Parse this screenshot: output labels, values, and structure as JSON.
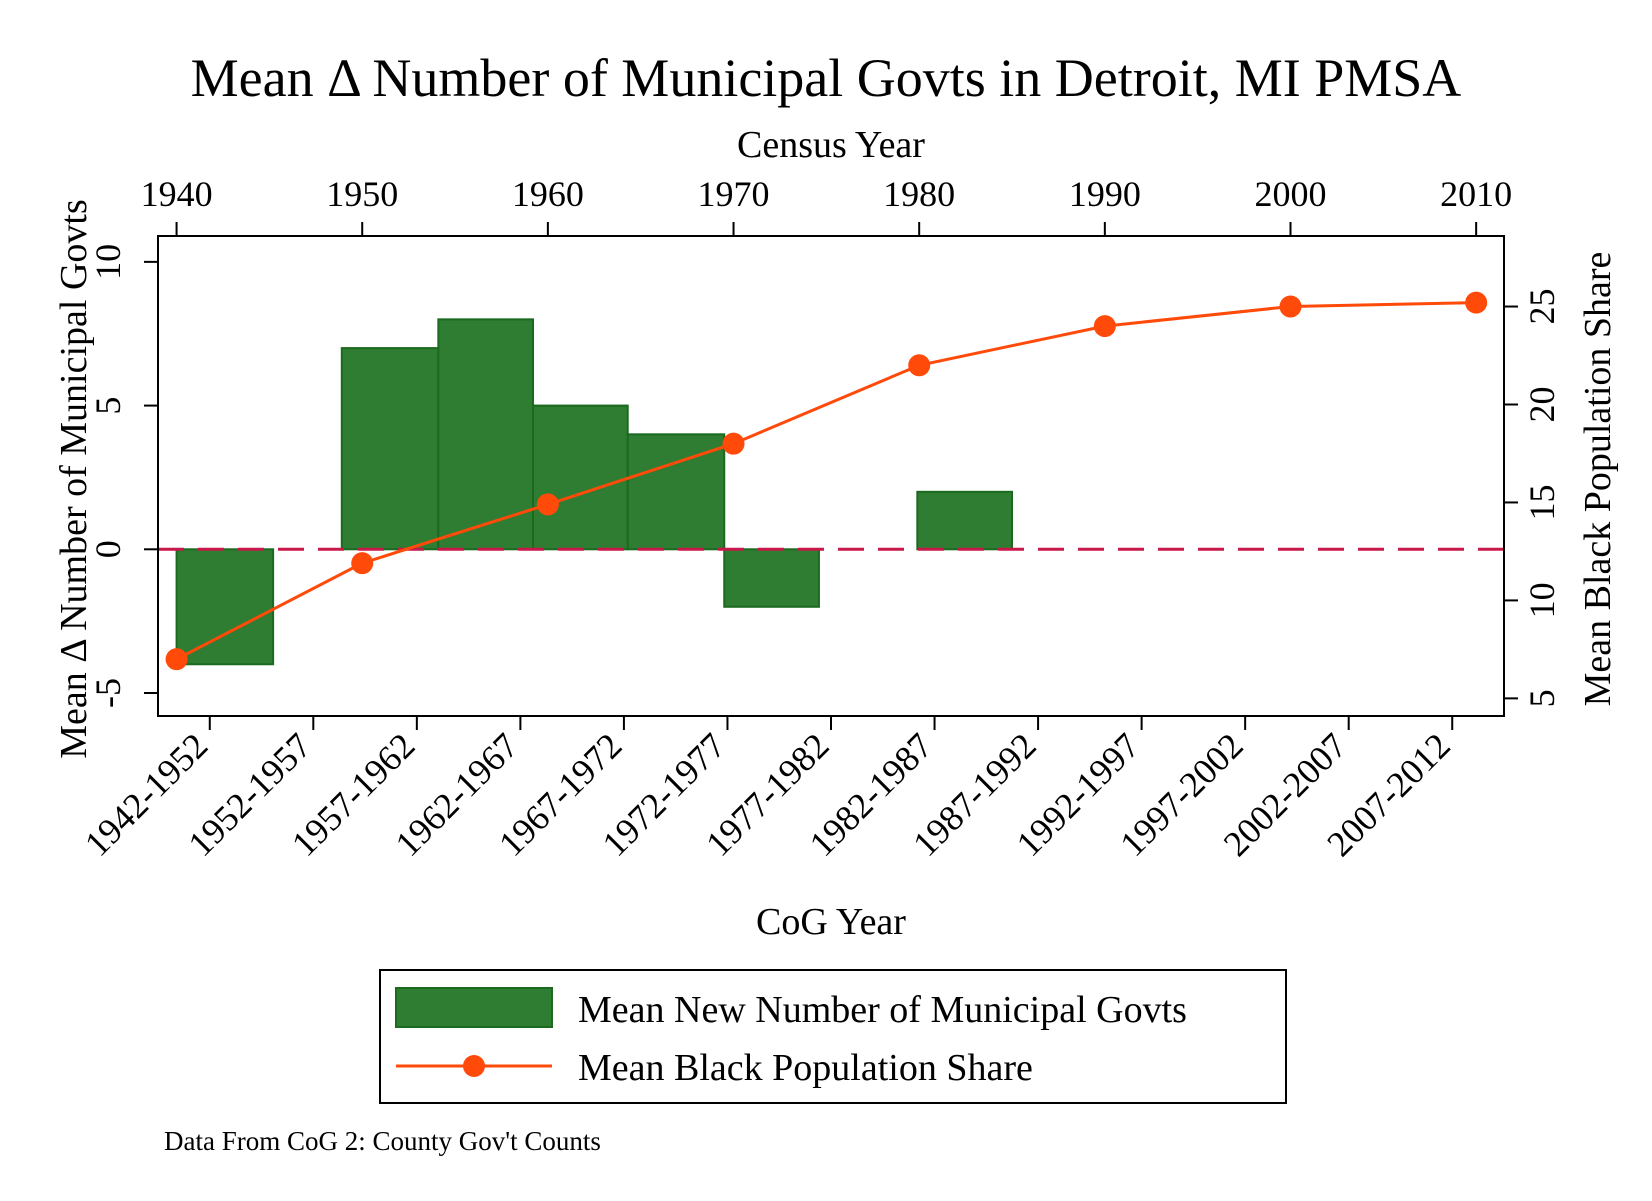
{
  "chart_data": {
    "type": "bar",
    "title": "Mean Δ Number of Municipal Govts in Detroit, MI PMSA",
    "note": "Data From CoG 2: County Gov't Counts",
    "x_bottom": {
      "label": "CoG Year",
      "categories": [
        "1942-1952",
        "1952-1957",
        "1957-1962",
        "1962-1967",
        "1967-1972",
        "1972-1977",
        "1977-1982",
        "1982-1987",
        "1987-1992",
        "1992-1997",
        "1997-2002",
        "2002-2007",
        "2007-2012"
      ]
    },
    "x_top": {
      "label": "Census Year",
      "ticks": [
        1940,
        1950,
        1960,
        1970,
        1980,
        1990,
        2000,
        2010
      ],
      "range": [
        1939,
        2011.5
      ]
    },
    "y_left": {
      "label": "Mean Δ Number of Municipal Govts",
      "ticks": [
        -5,
        0,
        5,
        10
      ],
      "range": [
        -5.8,
        10.9
      ]
    },
    "y_right": {
      "label": "Mean Black Population Share",
      "ticks": [
        5,
        10,
        15,
        20,
        25
      ],
      "range": [
        4.1,
        28.6
      ]
    },
    "reference_line": {
      "axis": "y_left",
      "value": 0,
      "color": "#c8184a",
      "style": "dashed"
    },
    "series": [
      {
        "name": "Mean New Number of Municipal Govts",
        "type": "bar",
        "axis": "y_left",
        "color": "#2e7d32",
        "edge_color": "#1b6a1f",
        "bars": [
          {
            "x_start": 1940,
            "x_end": 1945.2,
            "value": -4
          },
          {
            "x_start": 1948.9,
            "x_end": 1954.1,
            "value": 7
          },
          {
            "x_start": 1954.1,
            "x_end": 1959.2,
            "value": 8
          },
          {
            "x_start": 1959.2,
            "x_end": 1964.3,
            "value": 5
          },
          {
            "x_start": 1964.3,
            "x_end": 1969.5,
            "value": 4
          },
          {
            "x_start": 1969.5,
            "x_end": 1974.6,
            "value": -2
          },
          {
            "x_start": 1979.9,
            "x_end": 1985,
            "value": 2
          }
        ]
      },
      {
        "name": "Mean Black Population Share",
        "type": "line",
        "axis": "y_right",
        "color": "#ff4a0a",
        "marker": "circle",
        "x": [
          1940,
          1950,
          1960,
          1970,
          1980,
          1990,
          2000,
          2010
        ],
        "y": [
          7,
          11.9,
          14.9,
          18,
          22,
          24,
          25,
          25.2
        ]
      }
    ],
    "legend": {
      "placement": "bottom",
      "entries": [
        "Mean New Number of Municipal Govts",
        "Mean Black Population Share"
      ]
    },
    "grid": false
  }
}
